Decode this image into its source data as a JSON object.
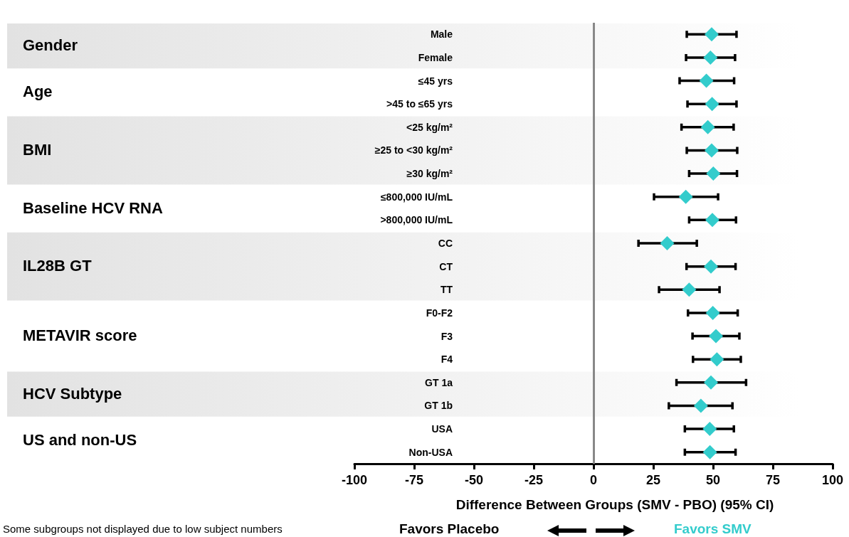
{
  "chart_data": {
    "type": "scatter",
    "orientation": "horizontal",
    "xlabel": "Difference Between Groups (SMV - PBO) (95% CI)",
    "categories": [
      "Male",
      "Female",
      "≤45 yrs",
      ">45 to ≤65 yrs",
      "<25 kg/m²",
      "≥25 to <30 kg/m²",
      "≥30 kg/m²",
      "≤800,000 IU/mL",
      ">800,000 IU/mL",
      "CC",
      "CT",
      "TT",
      "F0-F2",
      "F3",
      "F4",
      "GT 1a",
      "GT 1b",
      "USA",
      "Non-USA"
    ],
    "series": [
      {
        "color": "#33cccc",
        "values": [
          49.4,
          48.9,
          47.2,
          49.6,
          47.8,
          49.4,
          50.1,
          38.6,
          49.7,
          30.8,
          49.1,
          40,
          49.9,
          51.2,
          51.6,
          49.1,
          44.9,
          48.6,
          48.7
        ],
        "errors": [
          [
            39,
            59.8
          ],
          [
            38.7,
            59.2
          ],
          [
            36,
            58.8
          ],
          [
            39.3,
            59.8
          ],
          [
            36.8,
            58.6
          ],
          [
            39,
            60.1
          ],
          [
            40,
            60
          ],
          [
            25.3,
            52.1
          ],
          [
            40,
            59.6
          ],
          [
            18.8,
            43.2
          ],
          [
            38.9,
            59.4
          ],
          [
            27.4,
            52.7
          ],
          [
            39.5,
            60.3
          ],
          [
            41.4,
            61
          ],
          [
            41.6,
            61.6
          ],
          [
            34.7,
            63.8
          ],
          [
            31.5,
            58.1
          ],
          [
            38.2,
            58.7
          ],
          [
            38.2,
            59.4
          ]
        ]
      }
    ],
    "marker": "diamond",
    "xlim": [
      -100,
      100
    ],
    "xticks": [
      -100,
      -75,
      -50,
      -25,
      0,
      25,
      50,
      75,
      100
    ],
    "grid": false,
    "ref_lines": [
      {
        "axis": "x",
        "value": 0,
        "color": "#888888"
      }
    ],
    "bands": [
      {
        "axis": "y",
        "from": "Male",
        "to": "Female",
        "label": "Gender",
        "color": "#e2e2e2"
      },
      {
        "axis": "y",
        "from": "<25 kg/m²",
        "to": "≥30 kg/m²",
        "label": "BMI",
        "color": "#e2e2e2"
      },
      {
        "axis": "y",
        "from": "CC",
        "to": "TT",
        "label": "IL28B GT",
        "color": "#e2e2e2"
      },
      {
        "axis": "y",
        "from": "GT 1a",
        "to": "GT 1b",
        "label": "HCV Subtype",
        "color": "#e2e2e2"
      }
    ],
    "annotations": [
      "Favors Placebo",
      "Favors SMV",
      "Some subgroups not displayed due to low subject numbers",
      "Age",
      "Baseline HCV RNA",
      "METAVIR score",
      "US and non-US"
    ]
  }
}
